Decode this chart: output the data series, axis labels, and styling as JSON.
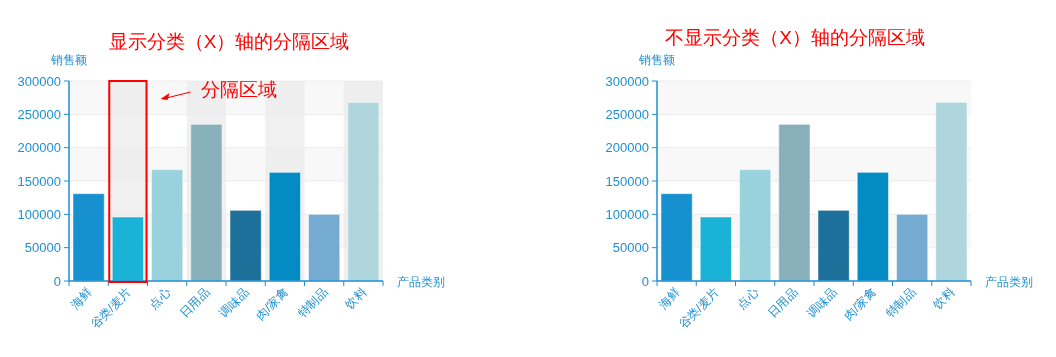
{
  "chart_data": [
    {
      "type": "bar",
      "title": "显示分类（X）轴的分隔区域",
      "xlabel": "产品类别",
      "ylabel": "销售额",
      "categories": [
        "海鲜",
        "谷类/麦片",
        "点心",
        "日用品",
        "调味品",
        "肉/家禽",
        "特制品",
        "饮料"
      ],
      "values": [
        131000,
        96000,
        167000,
        235000,
        106000,
        163000,
        100000,
        268000
      ],
      "colors": [
        "#1790cf",
        "#1bb2d8",
        "#99d2dd",
        "#88b0bb",
        "#1c7099",
        "#038cc4",
        "#75abd0",
        "#afd6dd"
      ],
      "ylim": [
        0,
        300000
      ],
      "yticks": [
        0,
        50000,
        100000,
        150000,
        200000,
        250000,
        300000
      ],
      "grid": "y",
      "bands": [
        {
          "axis": "y",
          "from": 50000,
          "to": 100000,
          "color": "#f8f8f8"
        },
        {
          "axis": "y",
          "from": 150000,
          "to": 200000,
          "color": "#f8f8f8"
        },
        {
          "axis": "y",
          "from": 250000,
          "to": 300000,
          "color": "#f8f8f8"
        },
        {
          "axis": "x",
          "from": "谷类/麦片",
          "to": "谷类/麦片",
          "color": "#ebebeb"
        },
        {
          "axis": "x",
          "from": "日用品",
          "to": "日用品",
          "color": "#ebebeb"
        },
        {
          "axis": "x",
          "from": "肉/家禽",
          "to": "肉/家禽",
          "color": "#ebebeb"
        },
        {
          "axis": "x",
          "from": "饮料",
          "to": "饮料",
          "color": "#ebebeb"
        }
      ],
      "annotations": [
        "分隔区域"
      ]
    },
    {
      "type": "bar",
      "title": "不显示分类（X）轴的分隔区域",
      "xlabel": "产品类别",
      "ylabel": "销售额",
      "categories": [
        "海鲜",
        "谷类/麦片",
        "点心",
        "日用品",
        "调味品",
        "肉/家禽",
        "特制品",
        "饮料"
      ],
      "values": [
        131000,
        96000,
        167000,
        235000,
        106000,
        163000,
        100000,
        268000
      ],
      "colors": [
        "#1790cf",
        "#1bb2d8",
        "#99d2dd",
        "#88b0bb",
        "#1c7099",
        "#038cc4",
        "#75abd0",
        "#afd6dd"
      ],
      "ylim": [
        0,
        300000
      ],
      "yticks": [
        0,
        50000,
        100000,
        150000,
        200000,
        250000,
        300000
      ],
      "grid": "y",
      "bands": [
        {
          "axis": "y",
          "from": 50000,
          "to": 100000,
          "color": "#f8f8f8"
        },
        {
          "axis": "y",
          "from": 150000,
          "to": 200000,
          "color": "#f8f8f8"
        },
        {
          "axis": "y",
          "from": 250000,
          "to": 300000,
          "color": "#f8f8f8"
        }
      ]
    }
  ]
}
